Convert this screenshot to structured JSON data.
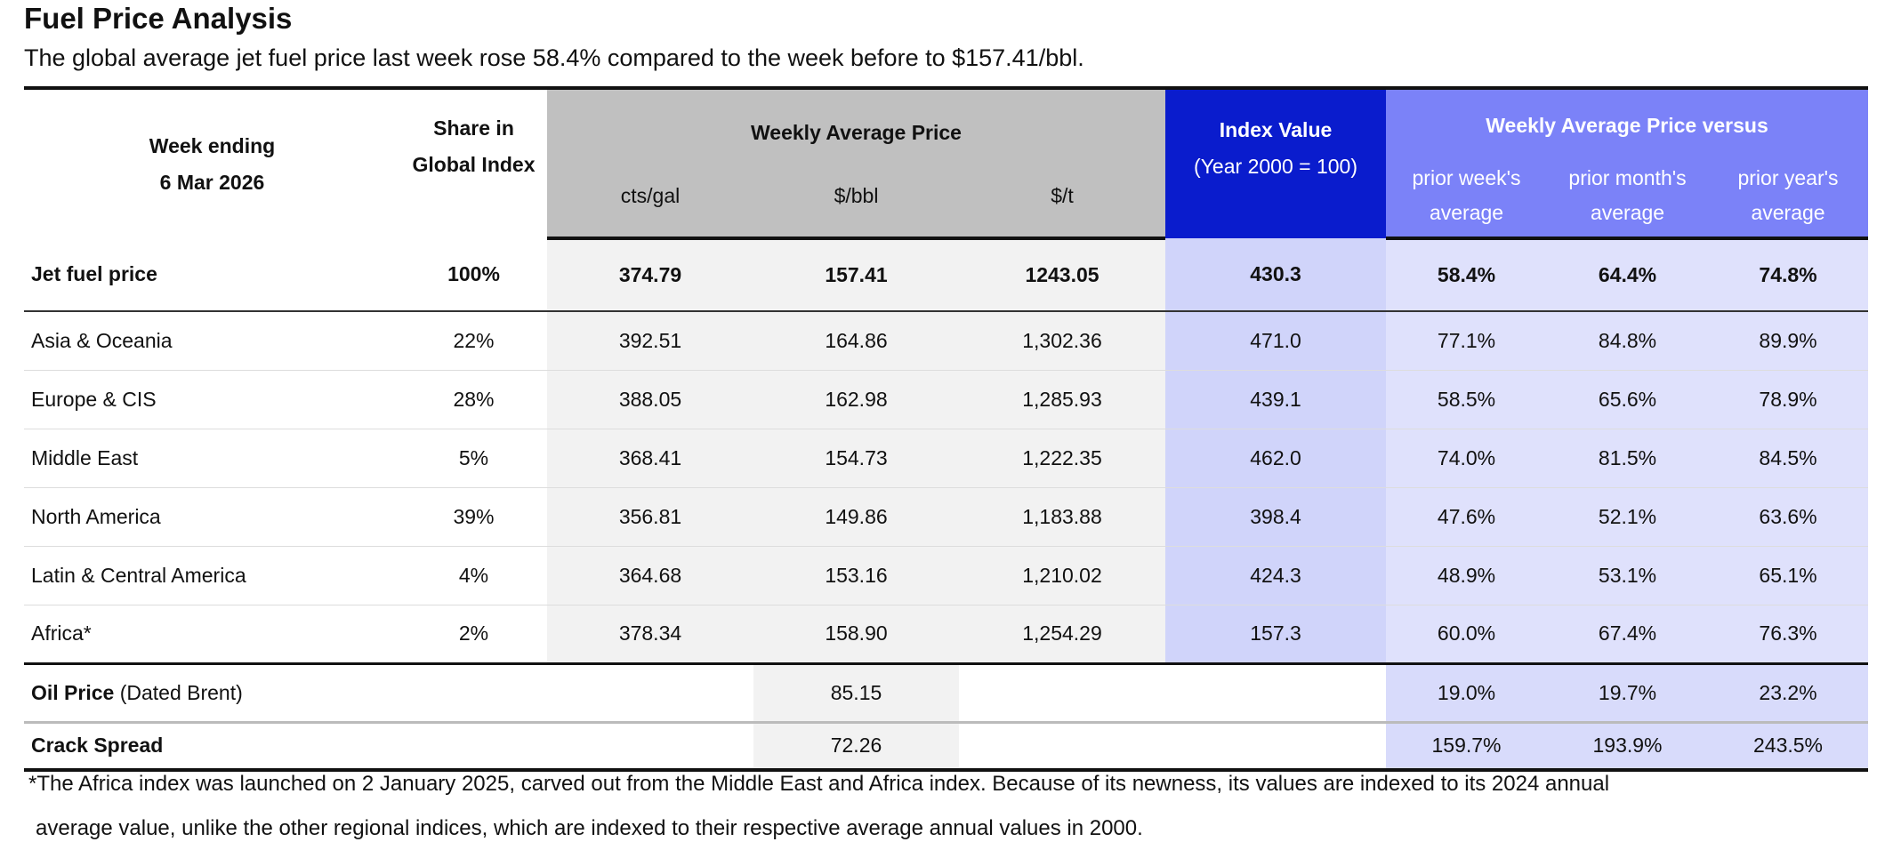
{
  "title": "Fuel Price Analysis",
  "subtitle": "The global average jet fuel price last week rose 58.4% compared to the week before to $157.41/bbl.",
  "header": {
    "week_ending": "Week ending",
    "date": "6 Mar 2026",
    "share_l1": "Share in",
    "share_l2": "Global Index",
    "wap": "Weekly Average Price",
    "units": [
      "cts/gal",
      "$/bbl",
      "$/t"
    ],
    "index": "Index Value",
    "index_sub": "(Year 2000 = 100)",
    "versus": "Weekly Average Price versus",
    "versus_cols": [
      [
        "prior week's",
        "average"
      ],
      [
        "prior month's",
        "average"
      ],
      [
        "prior year's",
        "average"
      ]
    ]
  },
  "jet": {
    "label": "Jet fuel price",
    "share": "100%",
    "cts": "374.79",
    "bbl": "157.41",
    "t": "1243.05",
    "index": "430.3",
    "w": "58.4%",
    "m": "64.4%",
    "y": "74.8%"
  },
  "regions": [
    {
      "label": "Asia & Oceania",
      "share": "22%",
      "cts": "392.51",
      "bbl": "164.86",
      "t": "1,302.36",
      "index": "471.0",
      "w": "77.1%",
      "m": "84.8%",
      "y": "89.9%"
    },
    {
      "label": "Europe & CIS",
      "share": "28%",
      "cts": "388.05",
      "bbl": "162.98",
      "t": "1,285.93",
      "index": "439.1",
      "w": "58.5%",
      "m": "65.6%",
      "y": "78.9%"
    },
    {
      "label": "Middle East",
      "share": "5%",
      "cts": "368.41",
      "bbl": "154.73",
      "t": "1,222.35",
      "index": "462.0",
      "w": "74.0%",
      "m": "81.5%",
      "y": "84.5%"
    },
    {
      "label": "North America",
      "share": "39%",
      "cts": "356.81",
      "bbl": "149.86",
      "t": "1,183.88",
      "index": "398.4",
      "w": "47.6%",
      "m": "52.1%",
      "y": "63.6%"
    },
    {
      "label": "Latin & Central America",
      "share": "4%",
      "cts": "364.68",
      "bbl": "153.16",
      "t": "1,210.02",
      "index": "424.3",
      "w": "48.9%",
      "m": "53.1%",
      "y": "65.1%"
    },
    {
      "label": "Africa*",
      "share": "2%",
      "cts": "378.34",
      "bbl": "158.90",
      "t": "1,254.29",
      "index": "157.3",
      "w": "60.0%",
      "m": "67.4%",
      "y": "76.3%"
    }
  ],
  "oil": {
    "label_bold": "Oil Price",
    "label_rest": " (Dated Brent)",
    "bbl": "85.15",
    "w": "19.0%",
    "m": "19.7%",
    "y": "23.2%"
  },
  "crack": {
    "label": "Crack Spread",
    "bbl": "72.26",
    "w": "159.7%",
    "m": "193.9%",
    "y": "243.5%"
  },
  "footnote": [
    "*The Africa index was launched on 2 January 2025, carved out from the Middle East and Africa index. Because of its newness, its values are indexed  to its 2024 annual",
    "average value, unlike the other regional indices, which are indexed to their respective average annual values in 2000."
  ],
  "colors": {
    "header_gray": "#c0c0c0",
    "index_blue": "#0a1ccd",
    "versus_blue": "#7b82f8",
    "body_gray": "#f2f2f2",
    "index_body": "#d0d4fa",
    "versus_body": "#dfe1fc"
  }
}
